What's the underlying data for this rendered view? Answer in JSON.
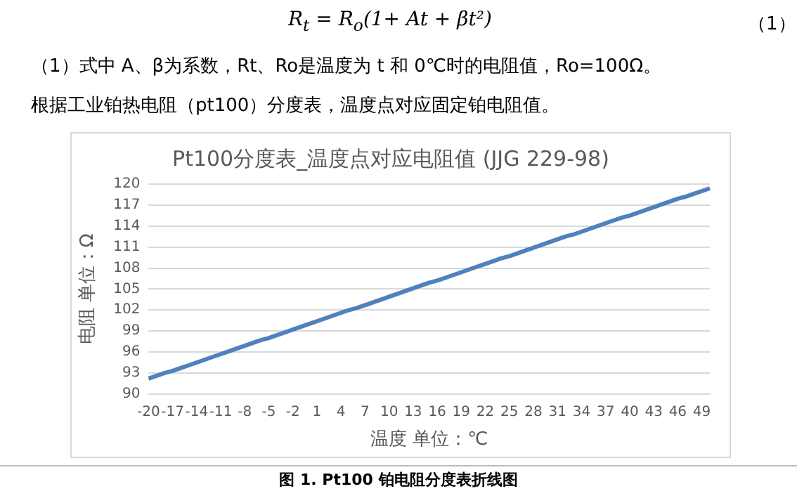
{
  "chart_data": {
    "type": "line",
    "title": "Pt100分度表_温度点对应电阻值 (JJG 229-98)",
    "xlabel": "温度 单位：℃",
    "ylabel": "电阻 单位：Ω",
    "annotations": [
      "R$_{t}$ = R$_{o}$(1+ At + βt²)",
      "（1）",
      "（1）式中 A、β为系数，Rt、Ro是温度为 t 和 0℃时的电阻值，Ro=100Ω。",
      "根据工业铂热电阻（pt100）分度表，温度点对应固定铂电阻值。",
      "图 1.  Pt100 铂电阻分度表折线图"
    ],
    "categories": [
      "-20",
      null,
      null,
      "-17",
      null,
      null,
      "-14",
      null,
      null,
      "-11",
      null,
      null,
      "-8",
      null,
      null,
      "-5",
      null,
      null,
      "-2",
      null,
      null,
      "1",
      null,
      null,
      "4",
      null,
      null,
      "7",
      null,
      null,
      "10",
      null,
      null,
      "13",
      null,
      null,
      "16",
      null,
      null,
      "19",
      null,
      null,
      "22",
      null,
      null,
      "25",
      null,
      null,
      "28",
      null,
      null,
      "31",
      null,
      null,
      "34",
      null,
      null,
      "37",
      null,
      null,
      "40",
      null,
      null,
      "43",
      null,
      null,
      "46",
      null,
      null,
      "49",
      null
    ],
    "series": [
      {
        "color": "#4f81bd",
        "values": [
          92.2,
          92.6,
          93.0,
          93.3,
          93.7,
          94.1,
          94.5,
          94.9,
          95.3,
          95.7,
          96.1,
          96.5,
          96.9,
          97.3,
          97.7,
          98.0,
          98.4,
          98.8,
          99.2,
          99.6,
          100.0,
          100.4,
          100.8,
          101.2,
          101.6,
          102.0,
          102.3,
          102.7,
          103.1,
          103.5,
          103.9,
          104.3,
          104.7,
          105.1,
          105.5,
          105.9,
          106.2,
          106.6,
          107.0,
          107.4,
          107.8,
          108.2,
          108.6,
          109.0,
          109.4,
          109.7,
          110.1,
          110.5,
          110.9,
          111.3,
          111.7,
          112.1,
          112.5,
          112.8,
          113.2,
          113.6,
          114.0,
          114.4,
          114.8,
          115.2,
          115.5,
          115.9,
          116.3,
          116.7,
          117.1,
          117.5,
          117.9,
          118.2,
          118.6,
          119.0,
          119.4
        ]
      }
    ],
    "ylim": [
      90,
      120
    ],
    "yticks": [
      90,
      93,
      96,
      99,
      102,
      105,
      108,
      111,
      114,
      117,
      120
    ],
    "grid": "y",
    "legend": false,
    "marker": "none",
    "line_style": "solid"
  }
}
